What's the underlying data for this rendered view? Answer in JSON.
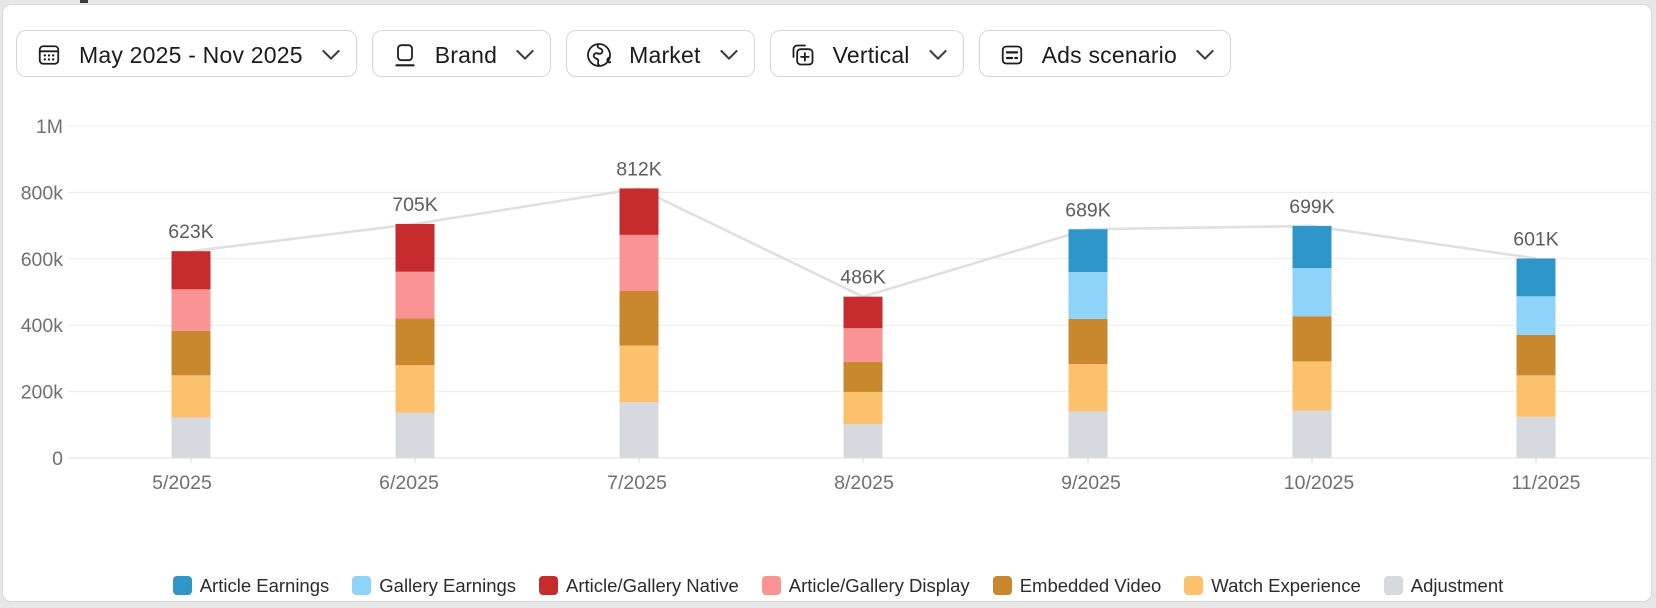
{
  "filters": {
    "items": [
      {
        "label": "May 2025 - Nov 2025"
      },
      {
        "label": "Brand"
      },
      {
        "label": "Market"
      },
      {
        "label": "Vertical"
      },
      {
        "label": "Ads scenario"
      }
    ]
  },
  "chart_data": {
    "type": "bar",
    "stacked": true,
    "unit": "thousands (K)",
    "categories": [
      "5/2025",
      "6/2025",
      "7/2025",
      "8/2025",
      "9/2025",
      "10/2025",
      "11/2025"
    ],
    "series": [
      {
        "name": "Adjustment",
        "color": "#d6dade",
        "values_k": [
          122,
          136,
          168,
          102,
          140,
          142,
          124
        ]
      },
      {
        "name": "Watch Experience",
        "color": "#fbc16d",
        "values_k": [
          127,
          144,
          171,
          97,
          143,
          149,
          125
        ]
      },
      {
        "name": "Embedded Video",
        "color": "#c9882e",
        "values_k": [
          134,
          140,
          164,
          90,
          136,
          136,
          122
        ]
      },
      {
        "name": "Article/Gallery Display",
        "color": "#fa9393",
        "values_k": [
          125,
          141,
          169,
          102,
          0,
          0,
          0
        ]
      },
      {
        "name": "Article/Gallery Native",
        "color": "#c62c2c",
        "values_k": [
          115,
          144,
          140,
          95,
          0,
          0,
          0
        ]
      },
      {
        "name": "Gallery Earnings",
        "color": "#8fd3f8",
        "values_k": [
          0,
          0,
          0,
          0,
          141,
          145,
          116
        ]
      },
      {
        "name": "Article Earnings",
        "color": "#2e96c9",
        "values_k": [
          0,
          0,
          0,
          0,
          129,
          127,
          114
        ]
      }
    ],
    "totals_k": [
      623,
      705,
      812,
      486,
      689,
      699,
      601
    ],
    "total_labels": [
      "623K",
      "705K",
      "812K",
      "486K",
      "689K",
      "699K",
      "601K"
    ],
    "y_axis": {
      "tick_labels": [
        "0",
        "200k",
        "400k",
        "600k",
        "800k",
        "1M"
      ],
      "tick_values_k": [
        0,
        200,
        400,
        600,
        800,
        1000
      ],
      "max_k": 1000
    },
    "trend_line": {
      "over": "totals",
      "color": "#e0e0e0"
    },
    "legend": {
      "position": "bottom",
      "order": [
        "Article Earnings",
        "Gallery Earnings",
        "Article/Gallery Native",
        "Article/Gallery Display",
        "Embedded Video",
        "Watch Experience",
        "Adjustment"
      ]
    }
  }
}
